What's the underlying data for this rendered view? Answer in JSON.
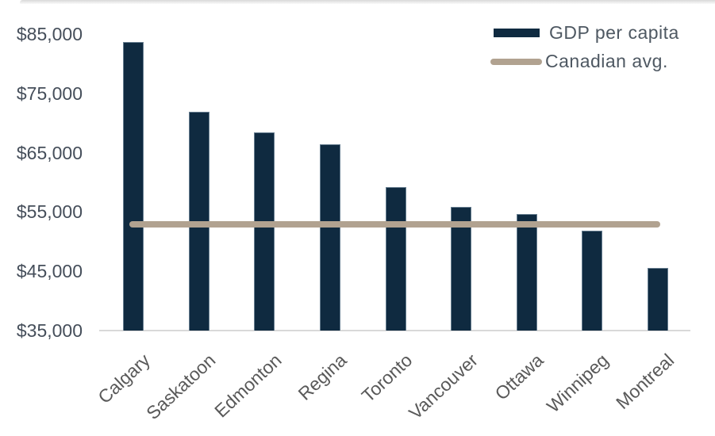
{
  "chart_data": {
    "type": "bar",
    "title": "",
    "categories": [
      "Calgary",
      "Saskatoon",
      "Edmonton",
      "Regina",
      "Toronto",
      "Vancouver",
      "Ottawa",
      "Winnipeg",
      "Montreal"
    ],
    "series": [
      {
        "name": "GDP per capita",
        "type": "bar",
        "values": [
          83700,
          71900,
          68400,
          66400,
          59200,
          55900,
          54700,
          51800,
          45600
        ]
      },
      {
        "name": "Canadian avg.",
        "type": "reference-line",
        "value": 52900
      }
    ],
    "xlabel": "",
    "ylabel": "",
    "ylim": [
      35000,
      85000
    ],
    "yticks": [
      85000,
      75000,
      65000,
      55000,
      45000,
      35000
    ],
    "ytick_labels": [
      "$85,000",
      "$75,000",
      "$65,000",
      "$55,000",
      "$45,000",
      "$35,000"
    ],
    "grid": false,
    "legend_position": "top-right",
    "colors": {
      "bar": "#0f2a40",
      "avg_line": "#b1a290",
      "axis_line": "#d9d9d9",
      "ytick_text": "#454e5a",
      "xtick_text": "#595959",
      "legend_text": "#4e5862"
    }
  }
}
